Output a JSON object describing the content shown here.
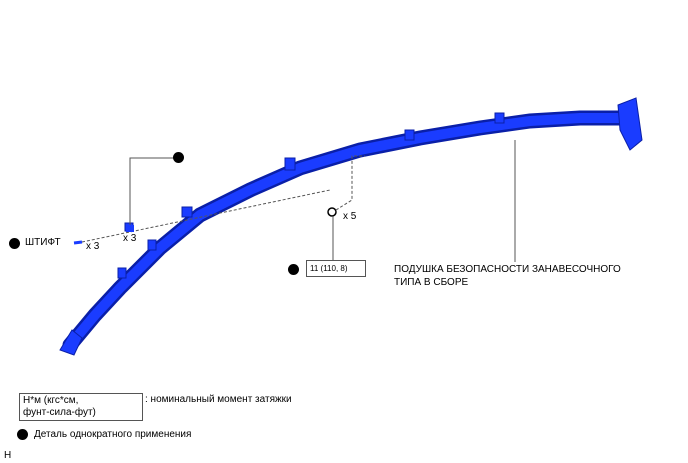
{
  "part_name": [
    "ПОДУШКА БЕЗОПАСНОСТИ ЗАНАВЕСОЧНОГО",
    "ТИПА В СБОРЕ"
  ],
  "pin_label": "ШТИФТ",
  "pin_qty": "x 3",
  "clip_qty": "x 3",
  "bolt_qty": "x 5",
  "torque_value": "11 (110, 8)",
  "legend": {
    "torque_unit_line1": "Н*м (кгс*см,",
    "torque_unit_line2": "фунт-сила-фут)",
    "torque_desc": ": номинальный момент затяжки",
    "single_use_desc": "Деталь однократного применения"
  },
  "corner_mark": "H",
  "colors": {
    "part": "#1a3cff",
    "part_dark": "#0a1fa8"
  }
}
